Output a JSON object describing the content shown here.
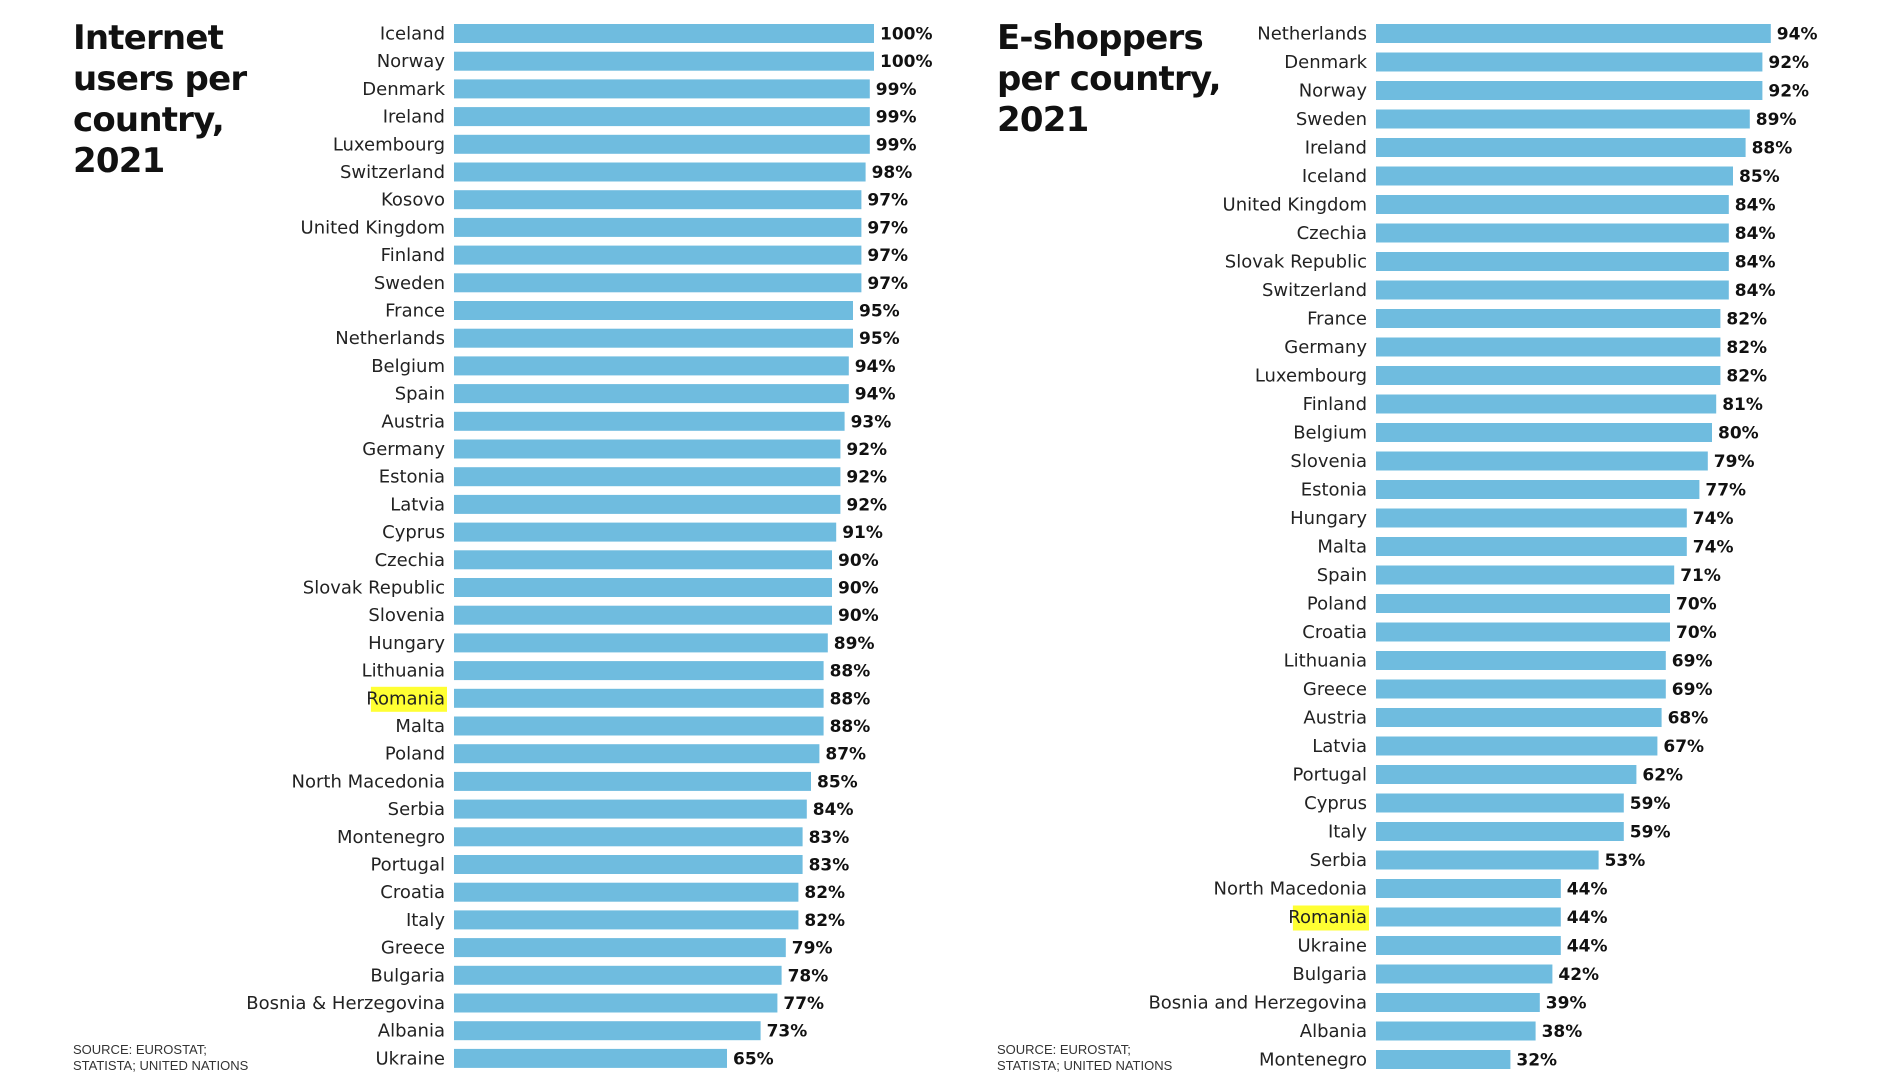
{
  "colors": {
    "bar": "#6fbcdf",
    "highlight": "#ffff33",
    "text": "#222222"
  },
  "chart_data": [
    {
      "type": "bar",
      "orientation": "horizontal",
      "title": "Internet\nusers per\ncountry,\n2021",
      "source": "SOURCE: EUROSTAT;\nSTATISTA; UNITED NATIONS",
      "highlight": "Romania",
      "xlim": [
        0,
        100
      ],
      "categories": [
        "Iceland",
        "Norway",
        "Denmark",
        "Ireland",
        "Luxembourg",
        "Switzerland",
        "Kosovo",
        "United Kingdom",
        "Finland",
        "Sweden",
        "France",
        "Netherlands",
        "Belgium",
        "Spain",
        "Austria",
        "Germany",
        "Estonia",
        "Latvia",
        "Cyprus",
        "Czechia",
        "Slovak Republic",
        "Slovenia",
        "Hungary",
        "Lithuania",
        "Romania",
        "Malta",
        "Poland",
        "North Macedonia",
        "Serbia",
        "Montenegro",
        "Portugal",
        "Croatia",
        "Italy",
        "Greece",
        "Bulgaria",
        "Bosnia & Herzegovina",
        "Albania",
        "Ukraine"
      ],
      "values": [
        100,
        100,
        99,
        99,
        99,
        98,
        97,
        97,
        97,
        97,
        95,
        95,
        94,
        94,
        93,
        92,
        92,
        92,
        91,
        90,
        90,
        90,
        89,
        88,
        88,
        88,
        87,
        85,
        84,
        83,
        83,
        82,
        82,
        79,
        78,
        77,
        73,
        65
      ],
      "value_labels": [
        "100%",
        "100%",
        "99%",
        "99%",
        "99%",
        "98%",
        "97%",
        "97%",
        "97%",
        "97%",
        "95%",
        "95%",
        "94%",
        "94%",
        "93%",
        "92%",
        "92%",
        "92%",
        "91%",
        "90%",
        "90%",
        "90%",
        "89%",
        "88%",
        "88%",
        "88%",
        "87%",
        "85%",
        "84%",
        "83%",
        "83%",
        "82%",
        "82%",
        "79%",
        "78%",
        "77%",
        "73%",
        "65%"
      ]
    },
    {
      "type": "bar",
      "orientation": "horizontal",
      "title": "E-shoppers\nper country,\n2021",
      "source": "SOURCE: EUROSTAT;\nSTATISTA; UNITED NATIONS",
      "highlight": "Romania",
      "xlim": [
        0,
        100
      ],
      "categories": [
        "Netherlands",
        "Denmark",
        "Norway",
        "Sweden",
        "Ireland",
        "Iceland",
        "United Kingdom",
        "Czechia",
        "Slovak Republic",
        "Switzerland",
        "France",
        "Germany",
        "Luxembourg",
        "Finland",
        "Belgium",
        "Slovenia",
        "Estonia",
        "Hungary",
        "Malta",
        "Spain",
        "Poland",
        "Croatia",
        "Lithuania",
        "Greece",
        "Austria",
        "Latvia",
        "Portugal",
        "Cyprus",
        "Italy",
        "Serbia",
        "North Macedonia",
        "Romania",
        "Ukraine",
        "Bulgaria",
        "Bosnia and Herzegovina",
        "Albania",
        "Montenegro"
      ],
      "values": [
        94,
        92,
        92,
        89,
        88,
        85,
        84,
        84,
        84,
        84,
        82,
        82,
        82,
        81,
        80,
        79,
        77,
        74,
        74,
        71,
        70,
        70,
        69,
        69,
        68,
        67,
        62,
        59,
        59,
        53,
        44,
        44,
        44,
        42,
        39,
        38,
        32
      ],
      "value_labels": [
        "94%",
        "92%",
        "92%",
        "89%",
        "88%",
        "85%",
        "84%",
        "84%",
        "84%",
        "84%",
        "82%",
        "82%",
        "82%",
        "81%",
        "80%",
        "79%",
        "77%",
        "74%",
        "74%",
        "71%",
        "70%",
        "70%",
        "69%",
        "69%",
        "68%",
        "67%",
        "62%",
        "59%",
        "59%",
        "53%",
        "44%",
        "44%",
        "44%",
        "42%",
        "39%",
        "38%",
        "32%"
      ]
    }
  ]
}
